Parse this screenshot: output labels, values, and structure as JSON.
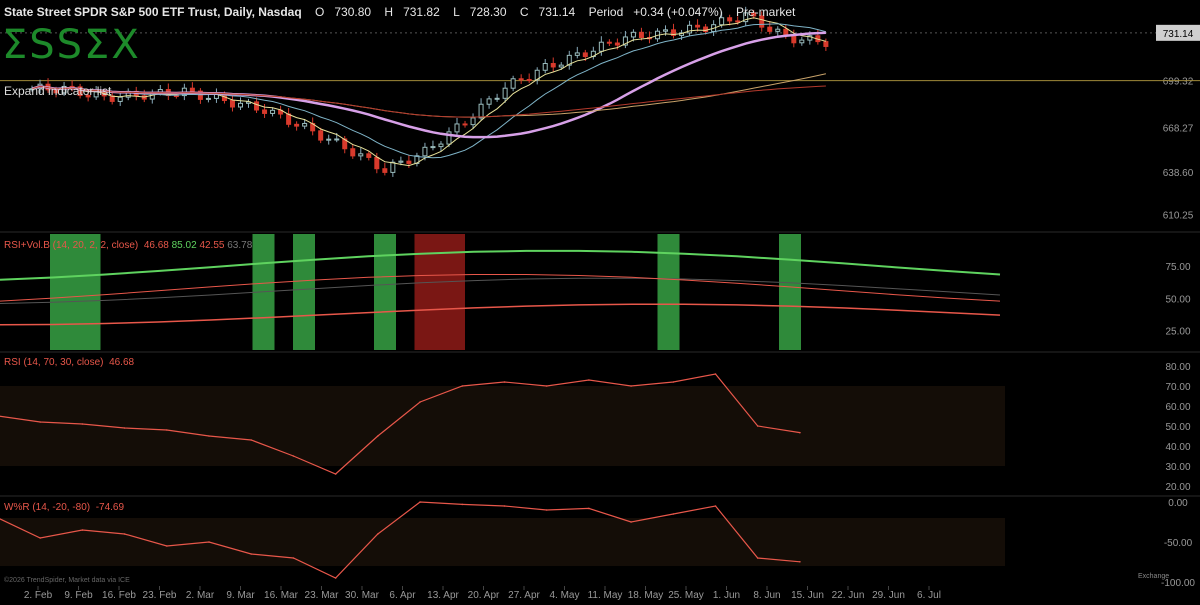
{
  "header": {
    "title": "State Street SPDR S&P 500 ETF Trust, Daily, Nasdaq",
    "open_label": "O",
    "open": "730.80",
    "high_label": "H",
    "high": "731.82",
    "low_label": "L",
    "low": "728.30",
    "close_label": "C",
    "close": "731.14",
    "period_label": "Period",
    "period": "+0.34 (+0.047%)",
    "session": "Pre-market"
  },
  "logo_text": "ΣSSΣX",
  "expand_label": "Expand indicator list",
  "credit": "©2026 TrendSpider, Market data via ICE",
  "exchange_label": "Exchange",
  "colors": {
    "up": "#2e9e44",
    "down": "#d83a2c",
    "rsi": "#e8574a",
    "green_line": "#5fd35f",
    "zone_green": "#2f8a3a",
    "zone_red": "#7a1714"
  },
  "chart_data": {
    "type": "candlestick",
    "x_ticks": [
      "2. Feb",
      "9. Feb",
      "16. Feb",
      "23. Feb",
      "2. Mar",
      "9. Mar",
      "16. Mar",
      "23. Mar",
      "30. Mar",
      "6. Apr",
      "13. Apr",
      "20. Apr",
      "27. Apr",
      "4. May",
      "11. May",
      "18. May",
      "25. May",
      "1. Jun",
      "8. Jun",
      "15. Jun",
      "22. Jun",
      "29. Jun",
      "6. Jul"
    ],
    "price_ticks": [
      731.14,
      699.32,
      668.27,
      638.6,
      610.25
    ],
    "last_price": 731.14,
    "reference_level": 699.32,
    "price_ylim": [
      600,
      745
    ],
    "weekly_close": [
      694,
      688,
      690,
      692,
      686,
      680,
      668,
      655,
      640,
      652,
      672,
      695,
      708,
      718,
      728,
      731,
      735,
      743,
      728,
      725,
      0,
      0,
      0
    ],
    "panels": [
      {
        "label": "RSI+Vol.B (14, 20, 2, 2, close)",
        "values": [
          "46.68",
          "85.02",
          "42.55",
          "63.78"
        ],
        "y_ticks": [
          75.0,
          50.0,
          25.0
        ],
        "ylim": [
          10,
          100
        ],
        "zones": [
          {
            "from": "2. Feb",
            "to": "9. Feb",
            "color": "green"
          },
          {
            "from": "9. Mar",
            "to": "9. Mar",
            "color": "green"
          },
          {
            "from": "16. Mar",
            "to": "16. Mar",
            "color": "green"
          },
          {
            "from": "30. Mar",
            "to": "30. Mar",
            "color": "green"
          },
          {
            "from": "6. Apr",
            "to": "13. Apr",
            "color": "red"
          },
          {
            "from": "18. May",
            "to": "18. May",
            "color": "green"
          },
          {
            "from": "8. Jun",
            "to": "8. Jun",
            "color": "green"
          }
        ]
      },
      {
        "label": "RSI (14, 70, 30, close)",
        "values": [
          "46.68"
        ],
        "y_ticks": [
          80.0,
          70.0,
          60.0,
          50.0,
          40.0,
          30.0,
          20.0
        ],
        "ylim": [
          17,
          82
        ],
        "band": [
          30,
          70
        ],
        "series": [
          {
            "values": [
              55,
              52,
              51,
              49,
              48,
              45,
              43,
              35,
              26,
              45,
              62,
              70,
              72,
              70,
              73,
              70,
              72,
              76,
              50,
              46.68
            ]
          }
        ]
      },
      {
        "label": "W%R (14, -20, -80)",
        "values": [
          "-74.69"
        ],
        "y_ticks": [
          0.0,
          -50.0,
          -100.0
        ],
        "ylim": [
          -105,
          5
        ],
        "band": [
          -80,
          -20
        ],
        "series": [
          {
            "values": [
              -20,
              -45,
              -35,
              -40,
              -55,
              -50,
              -65,
              -70,
              -95,
              -40,
              0,
              -3,
              -5,
              -10,
              -8,
              -25,
              -15,
              -5,
              -70,
              -74.69
            ]
          }
        ]
      }
    ]
  }
}
